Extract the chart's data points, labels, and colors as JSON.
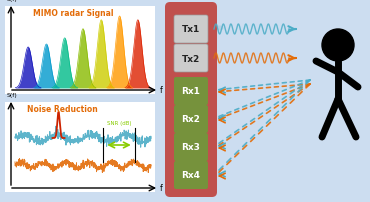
{
  "bg_color": "#ccddf0",
  "mimo_label": "MIMO radar Signal",
  "noise_label": "Noise Reduction",
  "snr_label": "SNR (dB)",
  "tx_labels": [
    "Tx1",
    "Tx2"
  ],
  "rx_labels": [
    "Rx1",
    "Rx2",
    "Rx3",
    "Rx4"
  ],
  "panel_bg": "#c0504d",
  "tx_bg": "#cccccc",
  "rx_bg": "#76923c",
  "tx_text_color": "#222222",
  "rx_text_color": "#ffffff",
  "color_blue": "#4bacc6",
  "color_orange": "#e36c09",
  "snr_arrow_color": "#88cc00",
  "peak_colors": [
    "#1111bb",
    "#0099cc",
    "#00bb88",
    "#88bb00",
    "#cccc00",
    "#ff9900",
    "#dd2200"
  ],
  "figure_width": 3.7,
  "figure_height": 2.03,
  "dpi": 100
}
